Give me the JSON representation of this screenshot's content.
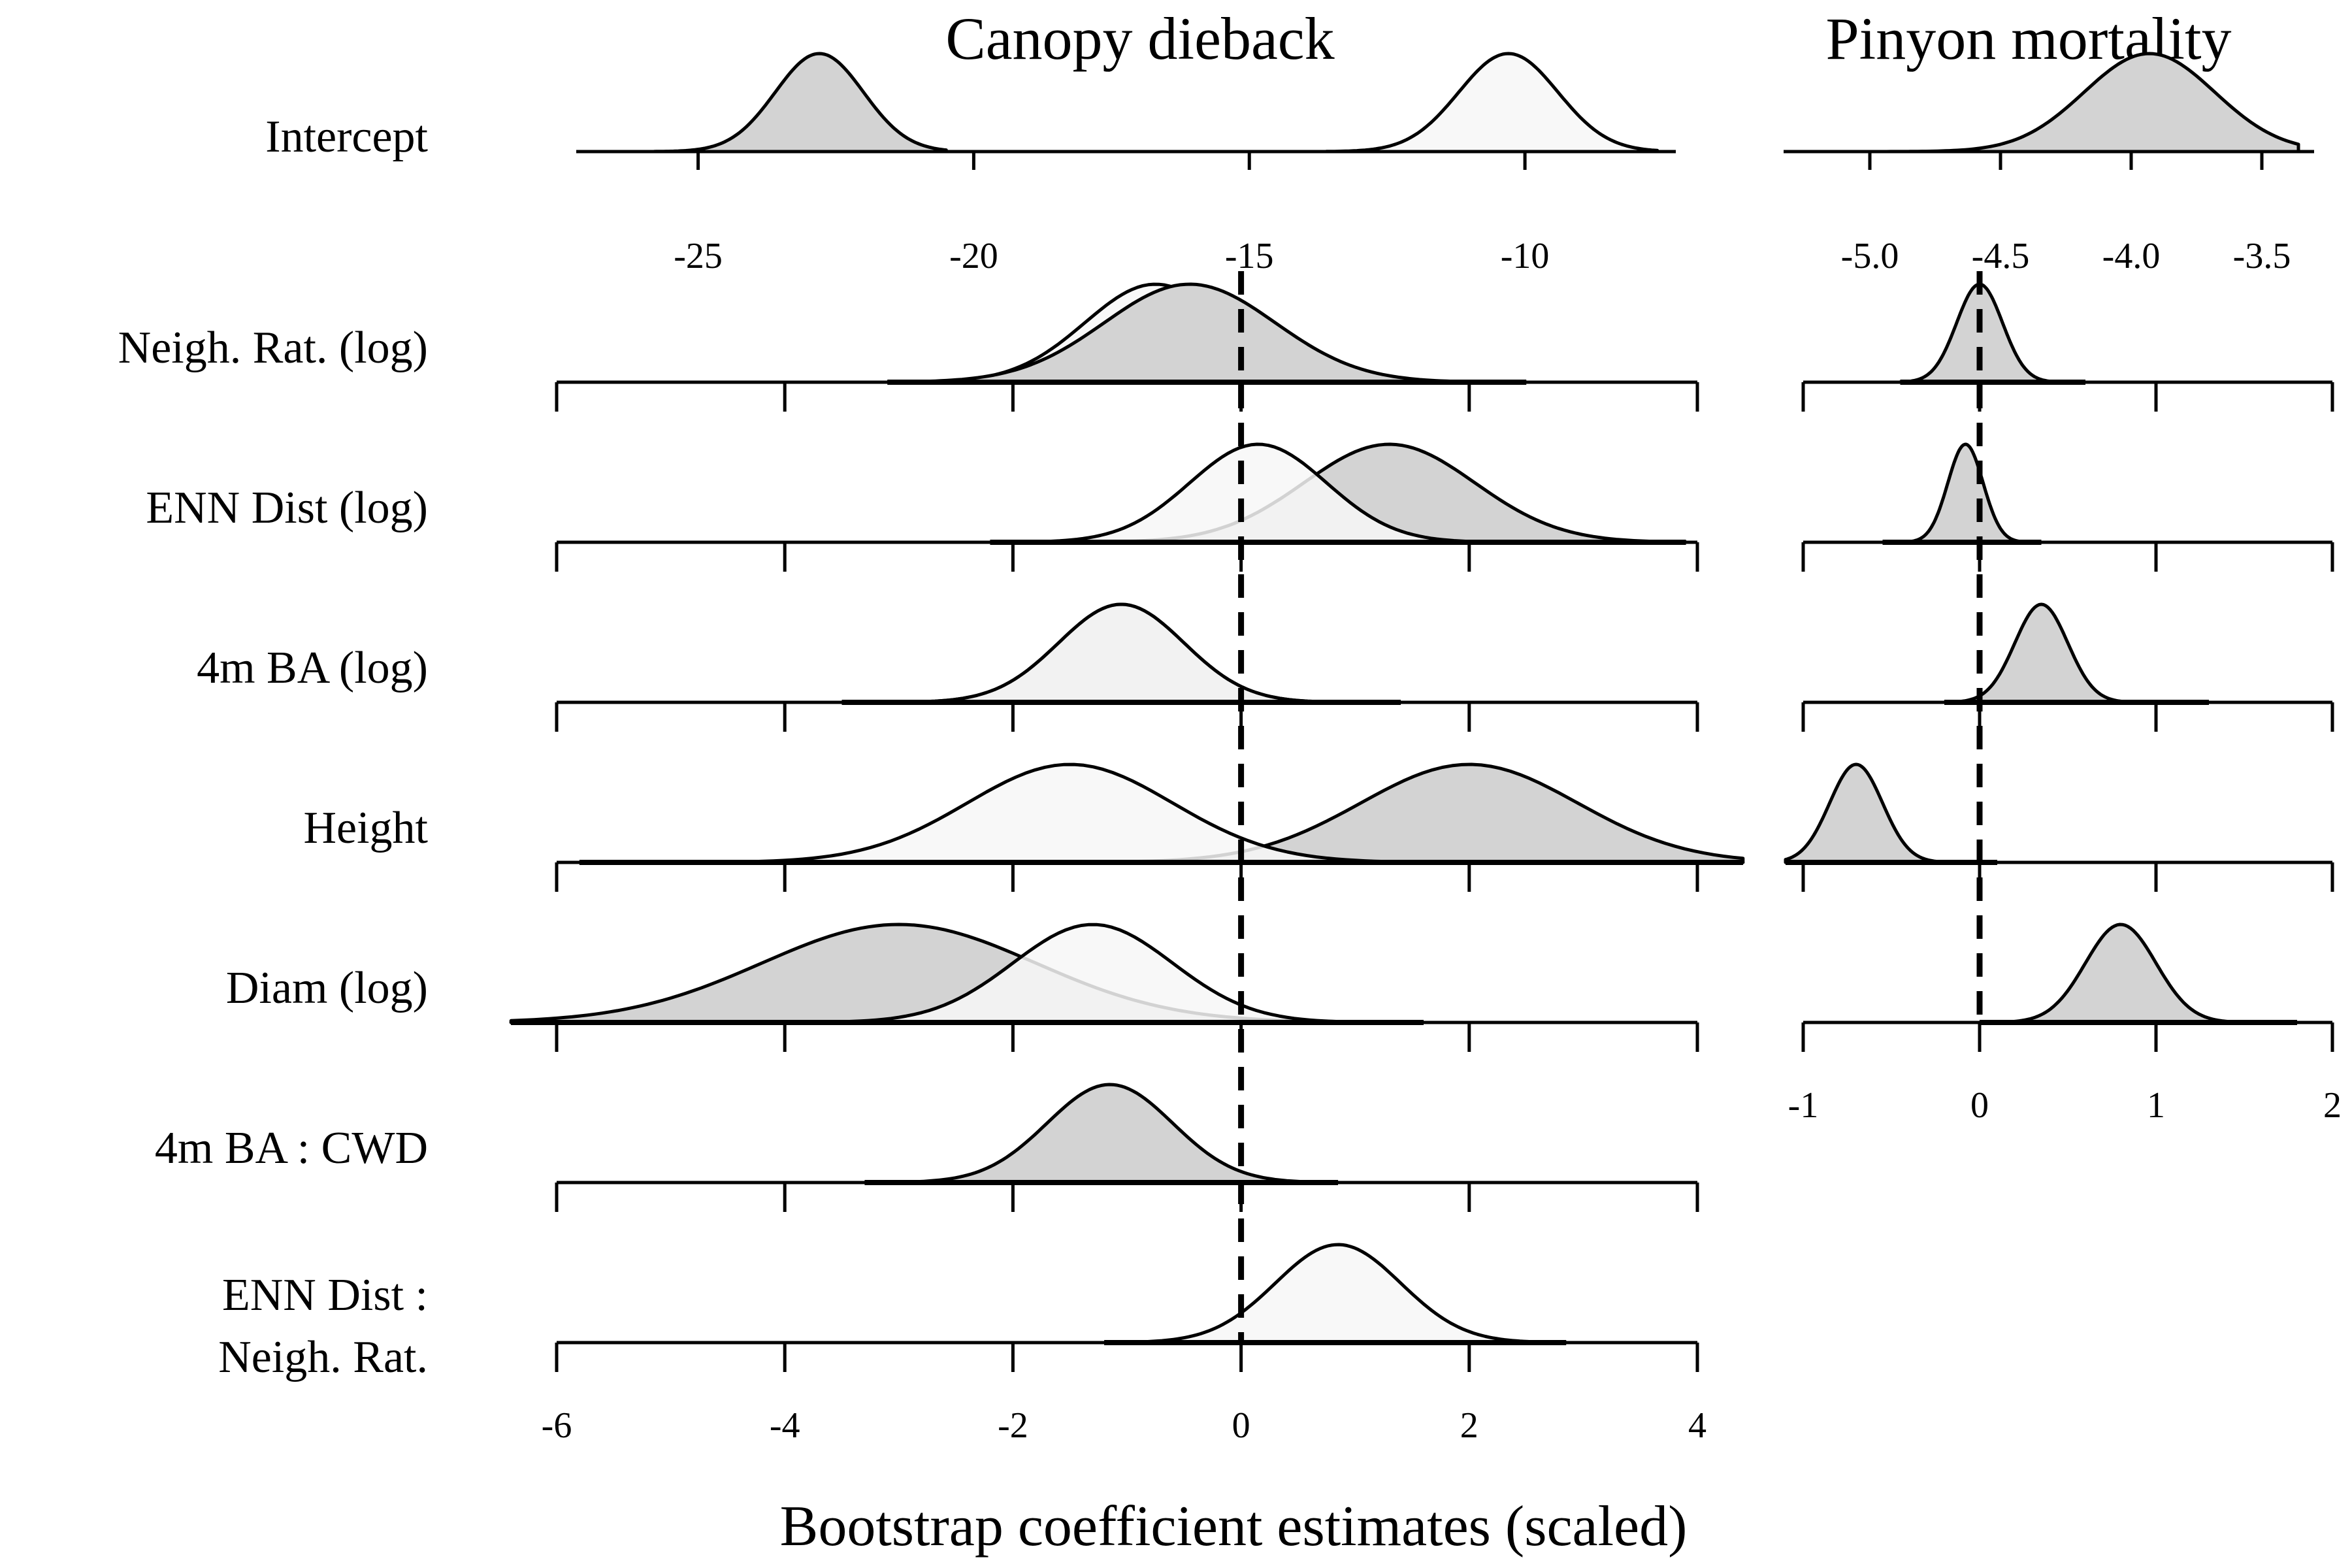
{
  "colors": {
    "gray_fill": "#d3d3d3",
    "white_fill": "#f7f7f7",
    "stroke": "#000000",
    "zero_line": "#000000"
  },
  "chart_data": {
    "type": "area",
    "panels": [
      {
        "title": "Canopy dieback",
        "xlabel": "Bootstrap coefficient estimates (scaled)",
        "intercept_axis": {
          "xlim": [
            -26.5,
            -7.5
          ],
          "ticks": [
            -25,
            -20,
            -15,
            -10
          ],
          "tick_labels": [
            "-25",
            "-20",
            "-15",
            "-10"
          ]
        },
        "coef_axis": {
          "xlim": [
            -6,
            4
          ],
          "ticks": [
            -6,
            -4,
            -2,
            0,
            2,
            4
          ],
          "tick_labels": [
            "-6",
            "-4",
            "-2",
            "0",
            "2",
            "4"
          ]
        },
        "zero_line": true,
        "rows": [
          {
            "label": "Intercept",
            "distributions": [
              {
                "fill": "gray",
                "mode": -22.8,
                "sd": 0.8,
                "range": [
                  -25.8,
                  -20.5
                ]
              },
              {
                "fill": "white",
                "mode": -10.3,
                "sd": 0.9,
                "range": [
                  -13.6,
                  -7.6
                ]
              }
            ]
          },
          {
            "label": "Neigh. Rat. (log)",
            "distributions": [
              {
                "fill": "white",
                "mode": -0.75,
                "sd": 0.62,
                "range": [
                  -3.1,
                  2.5
                ]
              },
              {
                "fill": "gray",
                "mode": -0.45,
                "sd": 0.75,
                "range": [
                  -3.1,
                  2.5
                ]
              }
            ]
          },
          {
            "label": "ENN Dist (log)",
            "distributions": [
              {
                "fill": "gray",
                "mode": 1.3,
                "sd": 0.75,
                "range": [
                  -2.2,
                  3.9
                ]
              },
              {
                "fill": "white",
                "mode": 0.15,
                "sd": 0.6,
                "range": [
                  -2.2,
                  3.9
                ]
              }
            ]
          },
          {
            "label": "4m BA (log)",
            "distributions": [
              {
                "fill": "gray",
                "mode": -1.05,
                "sd": 0.55,
                "range": [
                  -3.5,
                  1.4
                ]
              },
              {
                "fill": "white",
                "mode": -1.05,
                "sd": 0.55,
                "range": [
                  -3.5,
                  1.4
                ]
              }
            ]
          },
          {
            "label": "Height",
            "distributions": [
              {
                "fill": "gray",
                "mode": 2.0,
                "sd": 0.95,
                "range": [
                  -5.8,
                  4.4
                ]
              },
              {
                "fill": "white",
                "mode": -1.5,
                "sd": 0.9,
                "range": [
                  -5.8,
                  4.4
                ]
              }
            ]
          },
          {
            "label": "Diam (log)",
            "distributions": [
              {
                "fill": "gray",
                "mode": -3.0,
                "sd": 1.2,
                "range": [
                  -6.4,
                  1.6
                ]
              },
              {
                "fill": "white",
                "mode": -1.3,
                "sd": 0.7,
                "range": [
                  -6.4,
                  1.6
                ]
              }
            ]
          },
          {
            "label": "4m BA : CWD",
            "distributions": [
              {
                "fill": "gray",
                "mode": -1.15,
                "sd": 0.55,
                "range": [
                  -3.3,
                  0.85
                ]
              }
            ]
          },
          {
            "label_lines": [
              "ENN Dist :",
              "Neigh. Rat."
            ],
            "distributions": [
              {
                "fill": "white",
                "mode": 0.85,
                "sd": 0.55,
                "range": [
                  -1.2,
                  2.85
                ]
              }
            ]
          }
        ]
      },
      {
        "title": "Pinyon mortality",
        "intercept_axis": {
          "xlim": [
            -5.18,
            -3.35
          ],
          "ticks": [
            -5.0,
            -4.5,
            -4.0,
            -3.5
          ],
          "tick_labels": [
            "-5.0",
            "-4.5",
            "-4.0",
            "-3.5"
          ]
        },
        "coef_axis": {
          "xlim": [
            -1,
            2
          ],
          "ticks": [
            -1,
            0,
            1,
            2
          ],
          "tick_labels": [
            "-1",
            "0",
            "1",
            "2"
          ]
        },
        "zero_line": true,
        "rows": [
          {
            "distributions": [
              {
                "fill": "gray",
                "mode": -3.93,
                "sd": 0.25,
                "range": [
                  -5.16,
                  -3.36
                ]
              }
            ]
          },
          {
            "distributions": [
              {
                "fill": "gray",
                "mode": 0.0,
                "sd": 0.13,
                "range": [
                  -0.45,
                  0.6
                ]
              }
            ]
          },
          {
            "distributions": [
              {
                "fill": "gray",
                "mode": -0.08,
                "sd": 0.1,
                "range": [
                  -0.55,
                  0.35
                ]
              }
            ]
          },
          {
            "distributions": [
              {
                "fill": "gray",
                "mode": 0.35,
                "sd": 0.15,
                "range": [
                  -0.2,
                  1.3
                ]
              }
            ]
          },
          {
            "distributions": [
              {
                "fill": "gray",
                "mode": -0.7,
                "sd": 0.15,
                "range": [
                  -1.1,
                  0.1
                ]
              }
            ]
          },
          {
            "distributions": [
              {
                "fill": "gray",
                "mode": 0.8,
                "sd": 0.2,
                "range": [
                  0.0,
                  1.8
                ]
              }
            ]
          }
        ]
      }
    ]
  }
}
